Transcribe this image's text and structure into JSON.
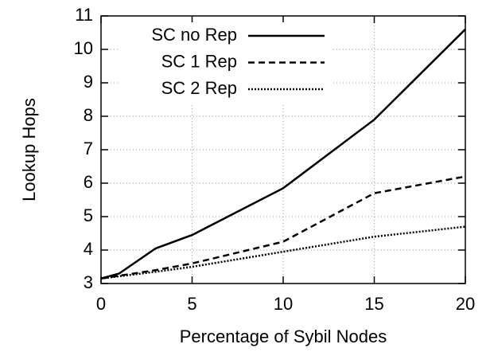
{
  "chart_data": {
    "type": "line",
    "xlabel": "Percentage of Sybil Nodes",
    "ylabel": "Lookup Hops",
    "xlim": [
      0,
      20
    ],
    "xticks": [
      0,
      5,
      10,
      15,
      20
    ],
    "ylim": [
      3,
      11
    ],
    "yticks": [
      3,
      4,
      5,
      6,
      7,
      8,
      9,
      10,
      11
    ],
    "grid": true,
    "legend": "top-left",
    "series": [
      {
        "name": "SC no Rep",
        "color": "#000000",
        "dash": "solid",
        "x": [
          0,
          1,
          3,
          5,
          10,
          15,
          20
        ],
        "values": [
          3.15,
          3.3,
          4.05,
          4.45,
          5.85,
          7.9,
          10.6
        ]
      },
      {
        "name": "SC 1 Rep",
        "color": "#000000",
        "dash": "dashed",
        "x": [
          0,
          3,
          5,
          10,
          15,
          20
        ],
        "values": [
          3.15,
          3.4,
          3.6,
          4.25,
          5.7,
          6.2
        ]
      },
      {
        "name": "SC 2 Rep",
        "color": "#000000",
        "dash": "dotted",
        "x": [
          0,
          3,
          5,
          10,
          15,
          20
        ],
        "values": [
          3.15,
          3.35,
          3.5,
          3.95,
          4.4,
          4.7
        ]
      }
    ]
  }
}
